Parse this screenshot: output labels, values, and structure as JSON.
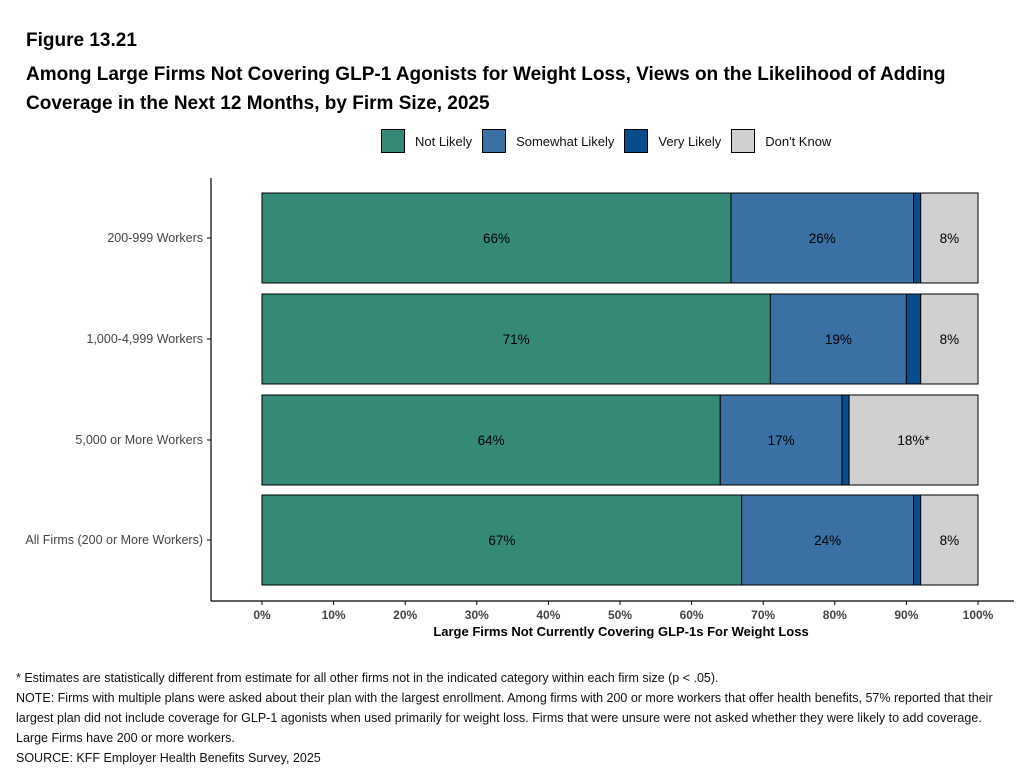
{
  "figure_label": "Figure 13.21",
  "title": "Among Large Firms Not Covering GLP-1 Agonists for Weight Loss, Views on the Likelihood of Adding Coverage in the Next 12 Months, by Firm Size, 2025",
  "footnotes": {
    "significance": "* Estimates are statistically different from estimate for all other firms not in the indicated category within each firm size (p < .05).",
    "note": "NOTE: Firms with multiple plans were asked about their plan with the largest enrollment.  Among firms with 200 or more workers that offer health benefits, 57% reported that their largest plan did not include coverage for GLP-1 agonists when used primarily for weight loss. Firms that were unsure were not asked whether they were likely to add coverage. Large Firms have 200 or more workers.",
    "source": "SOURCE: KFF Employer Health Benefits Survey, 2025"
  },
  "chart_data": {
    "type": "bar",
    "orientation": "horizontal",
    "stacked": true,
    "categories": [
      "200-999 Workers",
      "1,000-4,999 Workers",
      "5,000 or More Workers",
      "All Firms (200 or More Workers)"
    ],
    "series": [
      {
        "name": "Not Likely",
        "color": "#358A77",
        "values": [
          65.5,
          71,
          64,
          67
        ],
        "labels": [
          "66%",
          "71%",
          "64%",
          "67%"
        ]
      },
      {
        "name": "Somewhat Likely",
        "color": "#3A70A3",
        "values": [
          25.5,
          19,
          17,
          24
        ],
        "labels": [
          "26%",
          "19%",
          "17%",
          "24%"
        ]
      },
      {
        "name": "Very Likely",
        "color": "#0A4B8C",
        "values": [
          1,
          2,
          1,
          1
        ],
        "labels": [
          "",
          "",
          "",
          ""
        ]
      },
      {
        "name": "Don't Know",
        "color": "#D0D0D0",
        "values": [
          8,
          8,
          18,
          8
        ],
        "labels": [
          "8%",
          "8%",
          "18%*",
          "8%"
        ]
      }
    ],
    "xlabel": "Large Firms Not Currently Covering GLP-1s For Weight Loss",
    "ylabel": "",
    "xlim": [
      0,
      100
    ],
    "x_ticks": [
      "0%",
      "10%",
      "20%",
      "30%",
      "40%",
      "50%",
      "60%",
      "70%",
      "80%",
      "90%",
      "100%"
    ],
    "legend_position": "top",
    "grid": false
  }
}
